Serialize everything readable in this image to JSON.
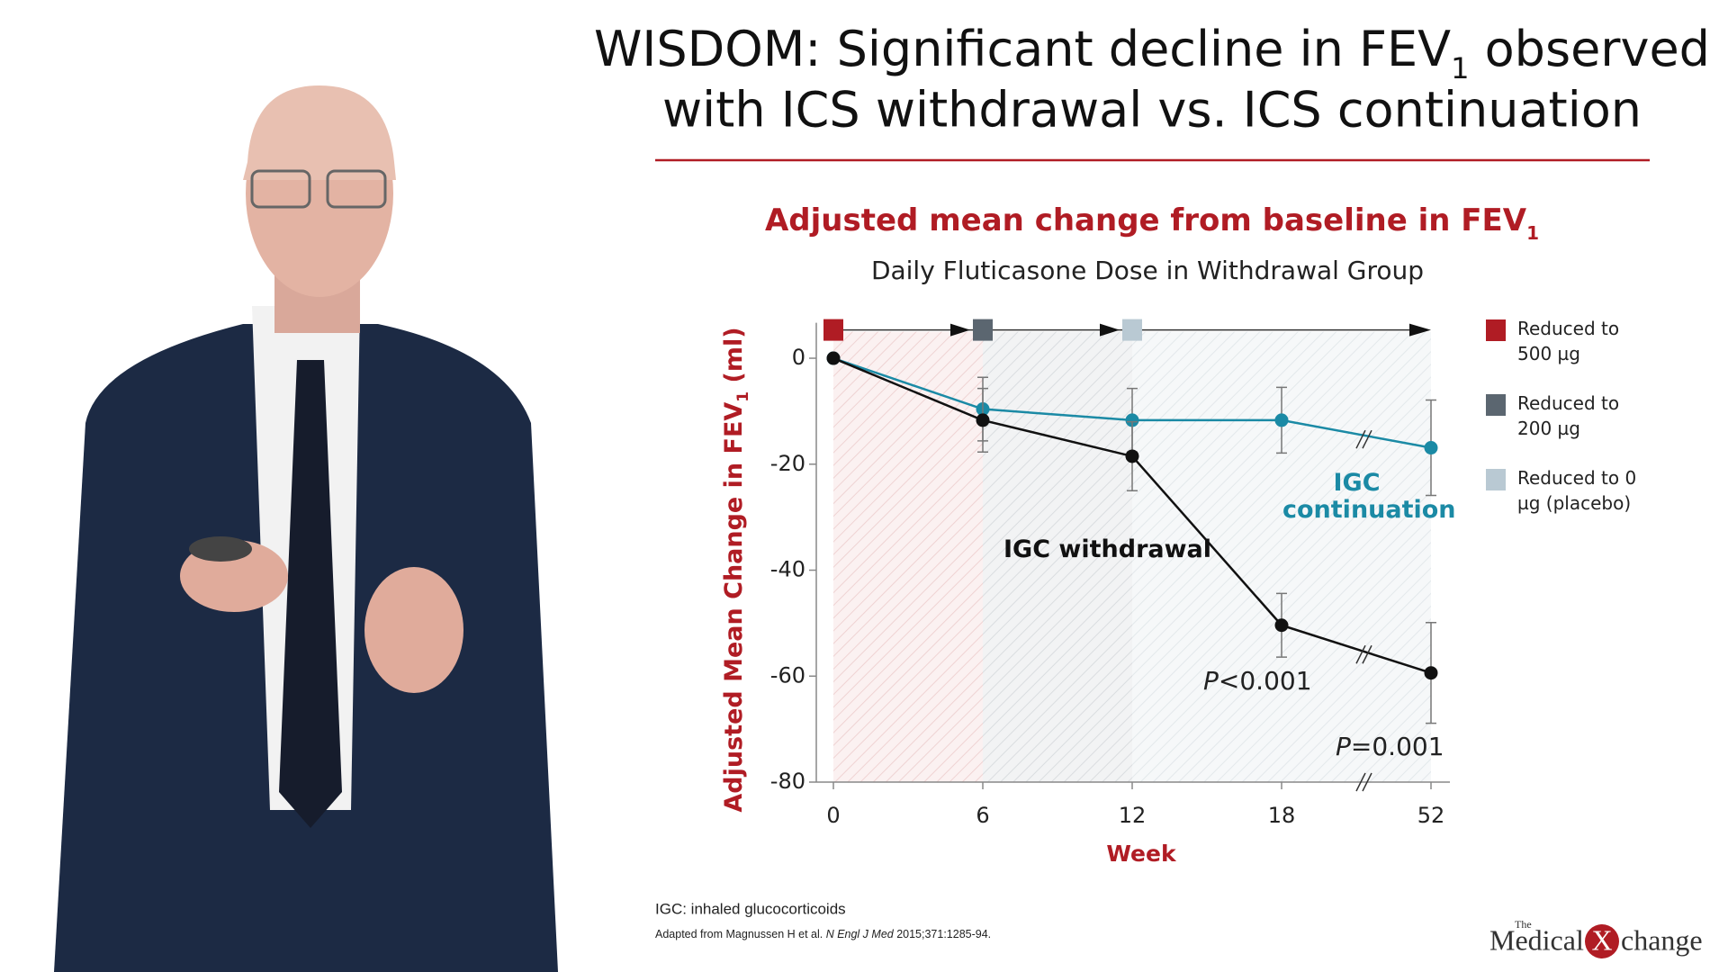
{
  "slide_title": [
    "WISDOM: Significant decline in FEV",
    "1",
    " observed",
    "with ICS withdrawal vs. ICS continuation"
  ],
  "chart_data": {
    "type": "line",
    "title": [
      "Adjusted mean change from baseline in FEV",
      "1"
    ],
    "subtitle": "Daily Fluticasone Dose in Withdrawal Group",
    "y_label": [
      "Adjusted Mean Change in FEV",
      "1",
      " (ml)"
    ],
    "x_label": "Week",
    "categories": [
      "0",
      "6",
      "12",
      "18",
      "52"
    ],
    "ylim": [
      -80,
      5
    ],
    "yticks": [
      0,
      -20,
      -40,
      -60,
      -80
    ],
    "series": [
      {
        "name": "IGC continuation",
        "color": "#1b8aa5",
        "values": [
          0,
          -9.6,
          -11.7,
          -11.7,
          -16.9
        ],
        "errors": [
          null,
          6,
          6,
          6.2,
          9
        ]
      },
      {
        "name": "IGC withdrawal",
        "color": "#111111",
        "values": [
          0,
          -11.7,
          -18.5,
          -50.4,
          -59.4
        ],
        "errors": [
          null,
          6,
          6.5,
          6,
          9.5
        ]
      }
    ],
    "dose_legend": [
      {
        "label": "Reduced to 500 µg",
        "color": "#b01c24"
      },
      {
        "label": "Reduced to 200 µg",
        "color": "#5b6670"
      },
      {
        "label": "Reduced to 0 µg (placebo)",
        "color": "#b9c9d3"
      }
    ],
    "annotations": [
      "P<0.001",
      "P=0.001"
    ]
  },
  "footnotes": [
    "IGC: inhaled glucocorticoids",
    [
      "Adapted from Magnussen H et al. ",
      "N Engl J Med",
      " 2015;371:1285-94."
    ]
  ],
  "logo": [
    "The",
    "Medical",
    "X",
    "change"
  ]
}
